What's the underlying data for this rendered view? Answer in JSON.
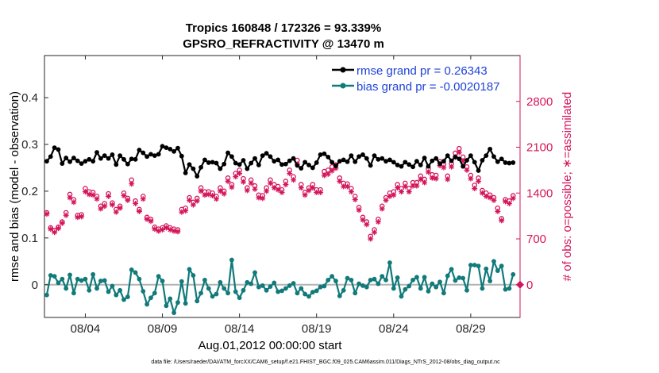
{
  "title_line1": "Tropics 160848 / 172326 = 93.339%",
  "title_line2": "GPSRO_REFRACTIVITY @ 13470 m",
  "footer": "data file: /Users/raeder/DAI/ATM_forcXX/CAM6_setup/f.e21.FHIST_BGC.f09_025.CAM6assim.011/Diags_NTrS_2012-08/obs_diag_output.nc",
  "colors": {
    "rmse": "#000000",
    "bias": "#117a7a",
    "obs": "#d4145a",
    "zero_line": "#b4b4b4"
  },
  "chart_data": {
    "type": "line",
    "title": "Tropics 160848 / 172326 = 93.339%",
    "subtitle": "GPSRO_REFRACTIVITY @ 13470 m",
    "xlabel": "Aug.01,2012 00:00:00 start",
    "ylabel": "rmse and bias (model - observation)",
    "y2label": "# of obs: o=possible; ∗=assimilated",
    "xlim": [
      1.35,
      32.2
    ],
    "ylim": [
      -0.07,
      0.49
    ],
    "y2lim": [
      -500,
      3500
    ],
    "x_ticks": [
      {
        "value": 4,
        "label": "08/04"
      },
      {
        "value": 9,
        "label": "08/09"
      },
      {
        "value": 14,
        "label": "08/14"
      },
      {
        "value": 19,
        "label": "08/19"
      },
      {
        "value": 24,
        "label": "08/24"
      },
      {
        "value": 29,
        "label": "08/29"
      }
    ],
    "y_ticks": [
      {
        "value": 0,
        "label": "0"
      },
      {
        "value": 0.1,
        "label": "0.1"
      },
      {
        "value": 0.2,
        "label": "0.2"
      },
      {
        "value": 0.3,
        "label": "0.3"
      },
      {
        "value": 0.4,
        "label": "0.4"
      }
    ],
    "y2_ticks": [
      {
        "value": 0,
        "label": "0"
      },
      {
        "value": 700,
        "label": "700"
      },
      {
        "value": 1400,
        "label": "1400"
      },
      {
        "value": 2100,
        "label": "2100"
      },
      {
        "value": 2800,
        "label": "2800"
      }
    ],
    "legend": {
      "position": "top-right",
      "entries": [
        "rmse grand pr = 0.26343",
        "bias grand pr = -0.0020187"
      ]
    },
    "series": [
      {
        "name": "rmse grand pr = 0.26343",
        "x": [
          1.5,
          1.75,
          2.0,
          2.25,
          2.5,
          2.75,
          3.0,
          3.25,
          3.5,
          3.75,
          4.0,
          4.25,
          4.5,
          4.75,
          5.0,
          5.25,
          5.5,
          5.75,
          6.0,
          6.25,
          6.5,
          6.75,
          7.0,
          7.25,
          7.5,
          7.75,
          8.0,
          8.25,
          8.5,
          8.75,
          9.0,
          9.25,
          9.5,
          9.75,
          10.0,
          10.25,
          10.5,
          10.75,
          11.0,
          11.25,
          11.5,
          11.75,
          12.0,
          12.25,
          12.5,
          12.75,
          13.0,
          13.25,
          13.5,
          13.75,
          14.0,
          14.25,
          14.5,
          14.75,
          15.0,
          15.25,
          15.5,
          15.75,
          16.0,
          16.25,
          16.5,
          16.75,
          17.0,
          17.25,
          17.5,
          17.75,
          18.0,
          18.25,
          18.5,
          18.75,
          19.0,
          19.25,
          19.5,
          19.75,
          20.0,
          20.25,
          20.5,
          20.75,
          21.0,
          21.25,
          21.5,
          21.75,
          22.0,
          22.25,
          22.5,
          22.75,
          23.0,
          23.25,
          23.5,
          23.75,
          24.0,
          24.25,
          24.5,
          24.75,
          25.0,
          25.25,
          25.5,
          25.75,
          26.0,
          26.25,
          26.5,
          26.75,
          27.0,
          27.25,
          27.5,
          27.75,
          28.0,
          28.25,
          28.5,
          28.75,
          29.0,
          29.25,
          29.5,
          29.75,
          30.0,
          30.25,
          30.5,
          30.75,
          31.0,
          31.25,
          31.5,
          31.75
        ],
        "values": [
          0.264,
          0.274,
          0.293,
          0.289,
          0.259,
          0.271,
          0.263,
          0.271,
          0.265,
          0.259,
          0.264,
          0.268,
          0.264,
          0.283,
          0.27,
          0.276,
          0.27,
          0.278,
          0.257,
          0.276,
          0.268,
          0.258,
          0.269,
          0.268,
          0.288,
          0.282,
          0.274,
          0.279,
          0.276,
          0.279,
          0.296,
          0.293,
          0.29,
          0.285,
          0.292,
          0.275,
          0.239,
          0.257,
          0.248,
          0.232,
          0.251,
          0.267,
          0.261,
          0.262,
          0.26,
          0.248,
          0.258,
          0.282,
          0.274,
          0.26,
          0.257,
          0.266,
          0.248,
          0.26,
          0.27,
          0.256,
          0.276,
          0.281,
          0.274,
          0.264,
          0.267,
          0.257,
          0.258,
          0.265,
          0.27,
          0.255,
          0.249,
          0.262,
          0.256,
          0.25,
          0.261,
          0.278,
          0.28,
          0.273,
          0.262,
          0.254,
          0.264,
          0.267,
          0.263,
          0.276,
          0.263,
          0.274,
          0.278,
          0.27,
          0.255,
          0.276,
          0.268,
          0.27,
          0.264,
          0.267,
          0.262,
          0.256,
          0.253,
          0.262,
          0.257,
          0.252,
          0.264,
          0.256,
          0.271,
          0.253,
          0.265,
          0.27,
          0.259,
          0.264,
          0.276,
          0.265,
          0.273,
          0.269,
          0.253,
          0.266,
          0.276,
          0.262,
          0.244,
          0.266,
          0.276,
          0.29,
          0.274,
          0.263,
          0.269,
          0.261,
          0.26,
          0.261
        ]
      },
      {
        "name": "bias grand pr = -0.0020187",
        "x": [
          1.5,
          1.75,
          2.0,
          2.25,
          2.5,
          2.75,
          3.0,
          3.25,
          3.5,
          3.75,
          4.0,
          4.25,
          4.5,
          4.75,
          5.0,
          5.25,
          5.5,
          5.75,
          6.0,
          6.25,
          6.5,
          6.75,
          7.0,
          7.25,
          7.5,
          7.75,
          8.0,
          8.25,
          8.5,
          8.75,
          9.0,
          9.25,
          9.5,
          9.75,
          10.0,
          10.25,
          10.5,
          10.75,
          11.0,
          11.25,
          11.5,
          11.75,
          12.0,
          12.25,
          12.5,
          12.75,
          13.0,
          13.25,
          13.5,
          13.75,
          14.0,
          14.25,
          14.5,
          14.75,
          15.0,
          15.25,
          15.5,
          15.75,
          16.0,
          16.25,
          16.5,
          16.75,
          17.0,
          17.25,
          17.5,
          17.75,
          18.0,
          18.25,
          18.5,
          18.75,
          19.0,
          19.25,
          19.5,
          19.75,
          20.0,
          20.25,
          20.5,
          20.75,
          21.0,
          21.25,
          21.5,
          21.75,
          22.0,
          22.25,
          22.5,
          22.75,
          23.0,
          23.25,
          23.5,
          23.75,
          24.0,
          24.25,
          24.5,
          24.75,
          25.0,
          25.25,
          25.5,
          25.75,
          26.0,
          26.25,
          26.5,
          26.75,
          27.0,
          27.25,
          27.5,
          27.75,
          28.0,
          28.25,
          28.5,
          28.75,
          29.0,
          29.25,
          29.5,
          29.75,
          30.0,
          30.25,
          30.5,
          30.75,
          31.0,
          31.25,
          31.5,
          31.75
        ],
        "values": [
          -0.022,
          0.02,
          0.018,
          0.004,
          0.012,
          -0.008,
          0.021,
          -0.018,
          0.012,
          0.009,
          0.012,
          -0.012,
          0.022,
          -0.008,
          0.008,
          0.009,
          -0.015,
          -0.003,
          -0.022,
          -0.012,
          -0.032,
          -0.026,
          0.032,
          0.026,
          0.012,
          -0.014,
          -0.042,
          -0.028,
          -0.018,
          0.018,
          0.008,
          -0.045,
          -0.03,
          -0.06,
          -0.038,
          0.007,
          -0.04,
          0.033,
          0.02,
          -0.035,
          -0.018,
          0.01,
          -0.008,
          -0.025,
          -0.02,
          0.005,
          -0.008,
          -0.018,
          0.053,
          -0.015,
          -0.028,
          -0.012,
          0.005,
          0.002,
          0.026,
          -0.005,
          -0.002,
          -0.012,
          -0.004,
          0.004,
          -0.015,
          -0.013,
          -0.008,
          -0.002,
          0.003,
          -0.018,
          -0.008,
          -0.02,
          -0.025,
          -0.016,
          -0.013,
          -0.005,
          -0.003,
          0.01,
          0.018,
          0.008,
          -0.024,
          -0.012,
          0.014,
          0.01,
          -0.018,
          0.002,
          -0.002,
          -0.005,
          0.01,
          0.012,
          0.002,
          0.018,
          0.01,
          0.047,
          -0.008,
          0.015,
          -0.025,
          -0.01,
          -0.003,
          0.01,
          0.016,
          -0.008,
          0.016,
          -0.014,
          0.002,
          -0.005,
          0.006,
          -0.018,
          0.019,
          0.033,
          0.009,
          0.015,
          0.014,
          -0.012,
          0.042,
          0.042,
          0.04,
          -0.008,
          0.034,
          0.008,
          0.05,
          0.03,
          0.04,
          -0.01,
          -0.008,
          0.022
        ]
      }
    ],
    "obs_counts": {
      "x": [
        1.5,
        1.75,
        2.0,
        2.25,
        2.5,
        2.75,
        3.0,
        3.25,
        3.5,
        3.75,
        4.0,
        4.25,
        4.5,
        4.75,
        5.0,
        5.25,
        5.5,
        5.75,
        6.0,
        6.25,
        6.5,
        6.75,
        7.0,
        7.25,
        7.5,
        7.75,
        8.0,
        8.25,
        8.5,
        8.75,
        9.0,
        9.25,
        9.5,
        9.75,
        10.0,
        10.25,
        10.5,
        10.75,
        11.0,
        11.25,
        11.5,
        11.75,
        12.0,
        12.25,
        12.5,
        12.75,
        13.0,
        13.25,
        13.5,
        13.75,
        14.0,
        14.25,
        14.5,
        14.75,
        15.0,
        15.25,
        15.5,
        15.75,
        16.0,
        16.25,
        16.5,
        16.75,
        17.0,
        17.25,
        17.5,
        17.75,
        18.0,
        18.25,
        18.5,
        18.75,
        19.0,
        19.25,
        19.5,
        19.75,
        20.0,
        20.25,
        20.5,
        20.75,
        21.0,
        21.25,
        21.5,
        21.75,
        22.0,
        22.25,
        22.5,
        22.75,
        23.0,
        23.25,
        23.5,
        23.75,
        24.0,
        24.25,
        24.5,
        24.75,
        25.0,
        25.25,
        25.5,
        25.75,
        26.0,
        26.25,
        26.5,
        26.75,
        27.0,
        27.25,
        27.5,
        27.75,
        28.0,
        28.25,
        28.5,
        28.75,
        29.0,
        29.25,
        29.5,
        29.75,
        30.0,
        30.25,
        30.5,
        30.75,
        31.0,
        31.25,
        31.5,
        31.75
      ],
      "possible": [
        1100,
        870,
        830,
        880,
        960,
        1100,
        1380,
        1300,
        1060,
        1070,
        1470,
        1420,
        1410,
        1350,
        1200,
        1240,
        1390,
        1250,
        1150,
        1200,
        1400,
        1320,
        1600,
        1280,
        1150,
        1350,
        1030,
        1000,
        880,
        850,
        870,
        900,
        870,
        850,
        840,
        1150,
        1170,
        1330,
        1260,
        1320,
        1480,
        1420,
        1420,
        1400,
        1350,
        1480,
        1430,
        1630,
        1530,
        1700,
        1750,
        1620,
        1480,
        1600,
        1510,
        1370,
        1360,
        1480,
        1600,
        1530,
        1500,
        1450,
        1580,
        1750,
        1650,
        1900,
        1530,
        1410,
        1480,
        1530,
        1450,
        1450,
        1730,
        1750,
        1800,
        1830,
        1630,
        1550,
        1540,
        1470,
        1350,
        1180,
        1030,
        960,
        740,
        840,
        1000,
        1200,
        1330,
        1400,
        1420,
        1530,
        1470,
        1550,
        1470,
        1560,
        1560,
        1660,
        1610,
        1770,
        1680,
        1670,
        1880,
        1840,
        1660,
        1850,
        2010,
        2080,
        1950,
        1800,
        1670,
        1520,
        1630,
        1440,
        1400,
        1370,
        1330,
        1170,
        1010,
        1300,
        1280,
        1360
      ],
      "assimilated": [
        1080,
        850,
        800,
        860,
        940,
        1060,
        1330,
        1260,
        1030,
        1040,
        1420,
        1380,
        1370,
        1310,
        1160,
        1200,
        1350,
        1220,
        1110,
        1170,
        1360,
        1290,
        1540,
        1240,
        1120,
        1310,
        1000,
        970,
        850,
        820,
        840,
        870,
        840,
        820,
        810,
        1110,
        1130,
        1290,
        1220,
        1280,
        1430,
        1370,
        1380,
        1360,
        1310,
        1430,
        1390,
        1580,
        1490,
        1650,
        1700,
        1570,
        1440,
        1550,
        1460,
        1330,
        1320,
        1430,
        1550,
        1480,
        1450,
        1410,
        1530,
        1700,
        1600,
        1840,
        1480,
        1370,
        1440,
        1480,
        1410,
        1410,
        1670,
        1690,
        1740,
        1780,
        1580,
        1500,
        1500,
        1420,
        1300,
        1140,
        990,
        920,
        700,
        800,
        960,
        1160,
        1290,
        1350,
        1370,
        1480,
        1420,
        1500,
        1420,
        1510,
        1510,
        1610,
        1560,
        1720,
        1630,
        1620,
        1820,
        1790,
        1610,
        1800,
        1950,
        2020,
        1890,
        1750,
        1620,
        1470,
        1580,
        1400,
        1350,
        1330,
        1290,
        1120,
        980,
        1270,
        1240,
        1320
      ]
    }
  }
}
